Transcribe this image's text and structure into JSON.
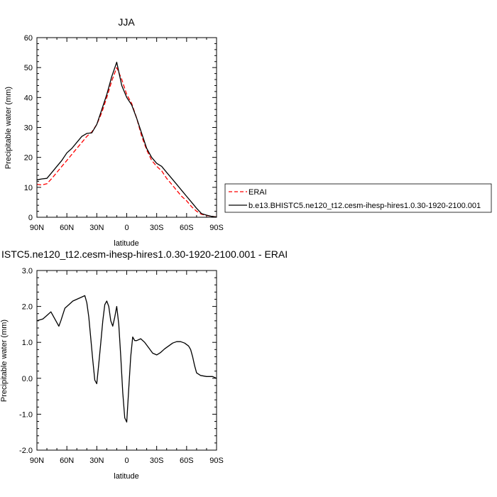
{
  "chart_data": [
    {
      "type": "line",
      "title": "JJA",
      "xlabel": "latitude",
      "ylabel": "Precipitable water (mm)",
      "xlim": [
        90,
        -90
      ],
      "ylim": [
        0,
        60
      ],
      "xticks": [
        90,
        60,
        30,
        0,
        -30,
        -60,
        -90
      ],
      "xtick_labels": [
        "90N",
        "60N",
        "30N",
        "0",
        "30S",
        "60S",
        "90S"
      ],
      "yticks": [
        0,
        10,
        20,
        30,
        40,
        50,
        60
      ],
      "ytick_labels": [
        "0",
        "10",
        "20",
        "30",
        "40",
        "50",
        "60"
      ],
      "legend_position": "right, outside plot",
      "series": [
        {
          "name": "ERAI",
          "color": "#ff0000",
          "dash": "dashed",
          "x": [
            90,
            85,
            80,
            75,
            70,
            65,
            60,
            55,
            50,
            45,
            40,
            35,
            30,
            25,
            20,
            15,
            10,
            5,
            0,
            -5,
            -10,
            -15,
            -20,
            -25,
            -30,
            -35,
            -40,
            -45,
            -50,
            -55,
            -60,
            -65,
            -70,
            -75,
            -80,
            -85,
            -90
          ],
          "y": [
            11,
            10.8,
            11.2,
            13,
            15,
            17,
            19,
            21,
            23,
            25,
            27,
            28.5,
            31,
            35,
            40,
            45.5,
            50,
            46,
            41,
            38,
            33,
            27,
            22.5,
            19,
            17,
            15.5,
            13,
            11,
            9,
            7,
            5.5,
            3.5,
            2,
            1,
            0.6,
            0.3,
            0.1
          ]
        },
        {
          "name": "b.e13.BHISTC5.ne120_t12.cesm-ihesp-hires1.0.30-1920-2100.001",
          "color": "#000000",
          "dash": "solid",
          "x": [
            90,
            85,
            80,
            75,
            70,
            65,
            60,
            55,
            50,
            45,
            40,
            35,
            30,
            25,
            20,
            15,
            10,
            5,
            0,
            -5,
            -10,
            -15,
            -20,
            -25,
            -30,
            -35,
            -40,
            -45,
            -50,
            -55,
            -60,
            -65,
            -70,
            -75,
            -80,
            -85,
            -90
          ],
          "y": [
            12.5,
            12.8,
            13,
            15,
            17,
            19,
            21.5,
            23,
            25,
            27,
            28,
            28.2,
            31,
            36,
            41,
            47,
            51.8,
            44,
            40,
            37.5,
            33,
            28,
            23,
            20,
            18,
            17,
            15,
            13,
            11,
            9,
            7,
            5,
            3,
            1.2,
            0.7,
            0.3,
            0.1
          ]
        }
      ]
    },
    {
      "type": "line",
      "title": "ISTC5.ne120_t12.cesm-ihesp-hires1.0.30-1920-2100.001 - ERAI",
      "xlabel": "latitude",
      "ylabel": "Precipitable water (mm)",
      "xlim": [
        90,
        -90
      ],
      "ylim": [
        -2,
        3
      ],
      "xticks": [
        90,
        60,
        30,
        0,
        -30,
        -60,
        -90
      ],
      "xtick_labels": [
        "90N",
        "60N",
        "30N",
        "0",
        "30S",
        "60S",
        "90S"
      ],
      "yticks": [
        -2,
        -1,
        0,
        1,
        2,
        3
      ],
      "ytick_labels": [
        "-2.0",
        "-1.0",
        "0.0",
        "1.0",
        "2.0",
        "3.0"
      ],
      "series": [
        {
          "color": "#000000",
          "dash": "solid",
          "x": [
            90,
            84,
            80,
            76,
            72,
            68,
            66,
            62,
            58,
            54,
            50,
            46,
            42,
            40,
            38,
            36,
            34,
            32,
            30,
            28,
            26,
            24,
            22,
            20,
            18,
            16,
            14,
            12,
            10,
            8,
            6,
            4,
            2,
            0,
            -2,
            -4,
            -6,
            -8,
            -10,
            -14,
            -18,
            -22,
            -26,
            -30,
            -34,
            -38,
            -42,
            -46,
            -50,
            -54,
            -58,
            -62,
            -64,
            -66,
            -68,
            -70,
            -74,
            -80,
            -86,
            -90
          ],
          "y": [
            1.6,
            1.65,
            1.75,
            1.85,
            1.65,
            1.45,
            1.6,
            1.95,
            2.05,
            2.15,
            2.2,
            2.25,
            2.3,
            2.1,
            1.7,
            1.1,
            0.5,
            -0.05,
            -0.15,
            0.4,
            1.0,
            1.6,
            2.05,
            2.15,
            2.0,
            1.6,
            1.45,
            1.7,
            2.0,
            1.5,
            0.6,
            -0.4,
            -1.1,
            -1.22,
            -0.3,
            0.6,
            1.15,
            1.05,
            1.05,
            1.1,
            1.0,
            0.85,
            0.7,
            0.65,
            0.72,
            0.82,
            0.9,
            0.98,
            1.02,
            1.02,
            0.98,
            0.9,
            0.8,
            0.6,
            0.35,
            0.15,
            0.08,
            0.05,
            0.05,
            0.0
          ]
        }
      ]
    }
  ]
}
